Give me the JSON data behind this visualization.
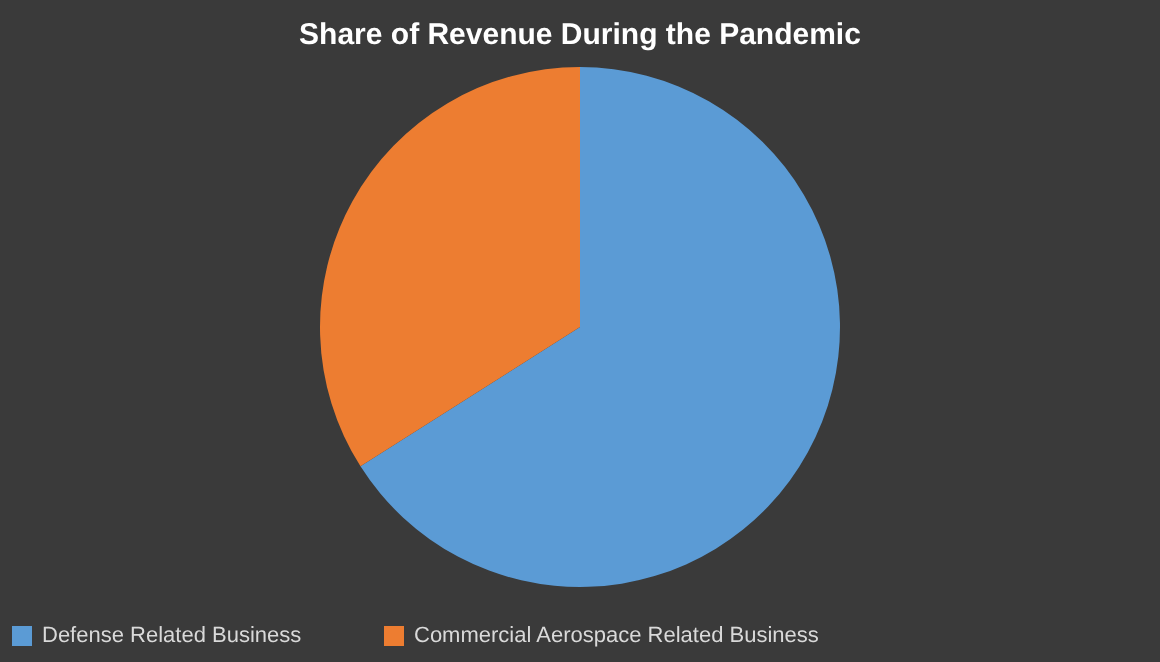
{
  "chart_data": {
    "type": "pie",
    "title": "Share of Revenue During the Pandemic",
    "categories": [
      "Defense Related Business",
      "Commercial Aerospace Related Business"
    ],
    "values": [
      66,
      34
    ],
    "colors": [
      "#5b9bd5",
      "#ed7d31"
    ],
    "legend": "bottom"
  }
}
